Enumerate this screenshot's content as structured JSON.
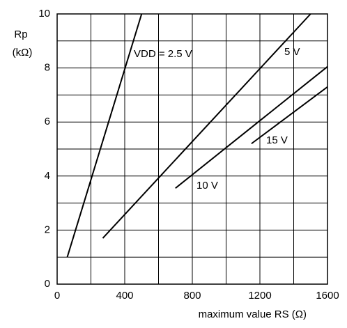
{
  "chart_data": {
    "type": "line",
    "y_label_main": "Rp",
    "y_label_unit": "(kΩ)",
    "x_label": "maximum value RS (Ω)",
    "xlim": [
      0,
      1600
    ],
    "xticks": [
      0,
      400,
      800,
      1200,
      1600
    ],
    "x_minor_ticks": [
      200,
      600,
      1000,
      1400
    ],
    "ylim": [
      0,
      10
    ],
    "yticks": [
      0,
      2,
      4,
      6,
      8,
      10
    ],
    "y_minor_ticks": [
      1,
      3,
      5,
      7,
      9
    ],
    "grid": true,
    "series": [
      {
        "name": "VDD = 2.5 V",
        "color": "#000000",
        "x": [
          60,
          500
        ],
        "values": [
          1,
          10
        ]
      },
      {
        "name": "5 V",
        "color": "#000000",
        "x": [
          270,
          1500
        ],
        "values": [
          1.7,
          10
        ]
      },
      {
        "name": "10 V",
        "color": "#000000",
        "x": [
          700,
          1600
        ],
        "values": [
          3.55,
          8.05
        ]
      },
      {
        "name": "15 V",
        "color": "#000000",
        "x": [
          1150,
          1600
        ],
        "values": [
          5.2,
          7.3
        ]
      }
    ]
  }
}
